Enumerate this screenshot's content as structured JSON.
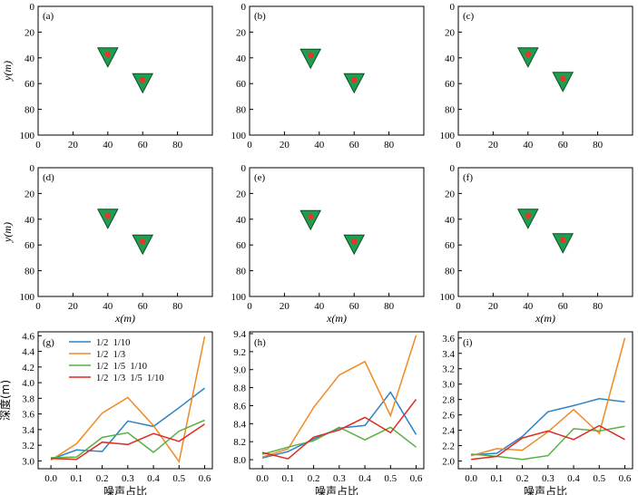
{
  "figure": {
    "map_axis": {
      "xlabel": "x(m)",
      "ylabel": "y(m)",
      "xticks": [
        0,
        20,
        40,
        60,
        80
      ],
      "yticks": [
        0,
        20,
        40,
        60,
        80,
        100
      ],
      "xlim": [
        0,
        100
      ],
      "ylim": [
        100,
        0
      ]
    },
    "colors": {
      "marker_fill": "#1e9e50",
      "marker_dot": "#e8342a",
      "blue": "#2b83c7",
      "orange": "#f08a24",
      "green": "#58b043",
      "red": "#e02b24"
    }
  },
  "chart_data": [
    {
      "type": "scatter",
      "panel": "(a)",
      "points": [
        {
          "x": 40,
          "y": 40
        },
        {
          "x": 60,
          "y": 60
        }
      ],
      "xlim": [
        0,
        100
      ],
      "ylim": [
        100,
        0
      ],
      "grid": false
    },
    {
      "type": "scatter",
      "panel": "(b)",
      "points": [
        {
          "x": 35,
          "y": 41
        },
        {
          "x": 60,
          "y": 60
        }
      ],
      "xlim": [
        0,
        100
      ],
      "ylim": [
        100,
        0
      ],
      "grid": false
    },
    {
      "type": "scatter",
      "panel": "(c)",
      "points": [
        {
          "x": 40,
          "y": 40
        },
        {
          "x": 60,
          "y": 59
        }
      ],
      "xlim": [
        0,
        100
      ],
      "ylim": [
        100,
        0
      ],
      "grid": false
    },
    {
      "type": "scatter",
      "panel": "(d)",
      "points": [
        {
          "x": 40,
          "y": 40
        },
        {
          "x": 60,
          "y": 60
        }
      ],
      "xlim": [
        0,
        100
      ],
      "ylim": [
        100,
        0
      ],
      "grid": false
    },
    {
      "type": "scatter",
      "panel": "(e)",
      "points": [
        {
          "x": 35,
          "y": 41
        },
        {
          "x": 60,
          "y": 60
        }
      ],
      "xlim": [
        0,
        100
      ],
      "ylim": [
        100,
        0
      ],
      "grid": false
    },
    {
      "type": "scatter",
      "panel": "(f)",
      "points": [
        {
          "x": 40,
          "y": 40
        },
        {
          "x": 60,
          "y": 59
        }
      ],
      "xlim": [
        0,
        100
      ],
      "ylim": [
        100,
        0
      ],
      "grid": false
    },
    {
      "type": "line",
      "panel": "(g)",
      "xlabel": "噪声占比",
      "ylabel": "深度(m)",
      "x": [
        0.0,
        0.1,
        0.2,
        0.3,
        0.4,
        0.5,
        0.6
      ],
      "xlim": [
        -0.05,
        0.63
      ],
      "ylim": [
        2.9,
        4.65
      ],
      "yticks": [
        3.0,
        3.2,
        3.4,
        3.6,
        3.8,
        4.0,
        4.2,
        4.4,
        4.6
      ],
      "legend": "top-left",
      "series": [
        {
          "name": "1/2  1/10",
          "color": "blue",
          "values": [
            3.02,
            3.14,
            3.12,
            3.51,
            3.44,
            3.68,
            3.93
          ]
        },
        {
          "name": "1/2  1/3",
          "color": "orange",
          "values": [
            3.01,
            3.22,
            3.61,
            3.81,
            3.45,
            2.99,
            4.59
          ]
        },
        {
          "name": "1/2  1/5  1/10",
          "color": "green",
          "values": [
            3.04,
            3.05,
            3.3,
            3.36,
            3.11,
            3.38,
            3.52
          ]
        },
        {
          "name": "1/2  1/3  1/5  1/10",
          "color": "red",
          "values": [
            3.03,
            3.02,
            3.24,
            3.21,
            3.35,
            3.25,
            3.47
          ]
        }
      ]
    },
    {
      "type": "line",
      "panel": "(h)",
      "xlabel": "噪声占比",
      "x": [
        0.0,
        0.1,
        0.2,
        0.3,
        0.4,
        0.5,
        0.6
      ],
      "xlim": [
        -0.05,
        0.63
      ],
      "ylim": [
        7.9,
        9.42
      ],
      "yticks": [
        8.0,
        8.2,
        8.4,
        8.6,
        8.8,
        9.0,
        9.2,
        9.4
      ],
      "series": [
        {
          "color": "blue",
          "values": [
            8.02,
            8.09,
            8.23,
            8.35,
            8.38,
            8.75,
            8.28
          ]
        },
        {
          "color": "orange",
          "values": [
            8.03,
            8.12,
            8.58,
            8.94,
            9.09,
            8.49,
            9.38
          ]
        },
        {
          "color": "green",
          "values": [
            8.06,
            8.14,
            8.21,
            8.36,
            8.22,
            8.36,
            8.14
          ]
        },
        {
          "color": "red",
          "values": [
            8.08,
            8.01,
            8.25,
            8.33,
            8.47,
            8.3,
            8.67
          ]
        }
      ]
    },
    {
      "type": "line",
      "panel": "(i)",
      "xlabel": "噪声占比",
      "x": [
        0.0,
        0.1,
        0.2,
        0.3,
        0.4,
        0.5,
        0.6
      ],
      "xlim": [
        -0.05,
        0.63
      ],
      "ylim": [
        1.9,
        3.68
      ],
      "yticks": [
        2.0,
        2.2,
        2.4,
        2.6,
        2.8,
        3.0,
        3.2,
        3.4,
        3.6
      ],
      "series": [
        {
          "color": "blue",
          "values": [
            2.08,
            2.1,
            2.32,
            2.64,
            2.72,
            2.81,
            2.77
          ]
        },
        {
          "color": "orange",
          "values": [
            2.07,
            2.16,
            2.14,
            2.38,
            2.67,
            2.36,
            3.6
          ]
        },
        {
          "color": "green",
          "values": [
            2.09,
            2.06,
            2.02,
            2.07,
            2.42,
            2.39,
            2.45
          ]
        },
        {
          "color": "red",
          "values": [
            2.02,
            2.06,
            2.3,
            2.39,
            2.28,
            2.46,
            2.28
          ]
        }
      ]
    }
  ]
}
